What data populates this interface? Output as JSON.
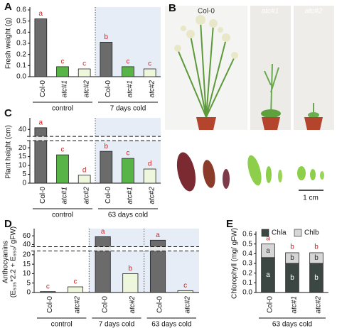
{
  "chart_data": [
    {
      "type": "bar",
      "panel": "A",
      "ylabel": "Fresh weight (g)",
      "categories": [
        "Col-0",
        "atc#1",
        "atc#2",
        "Col-0",
        "atc#1",
        "atc#2"
      ],
      "values": [
        0.52,
        0.09,
        0.07,
        0.31,
        0.09,
        0.07
      ],
      "colors": [
        "#6b6b6b",
        "#58b446",
        "#eef7dc",
        "#6b6b6b",
        "#58b446",
        "#eef7dc"
      ],
      "letters": [
        "a",
        "c",
        "c",
        "b",
        "c",
        "c"
      ],
      "groups": [
        "control",
        "7 days cold"
      ],
      "ylim": [
        0,
        0.6
      ],
      "yticks": [
        {
          "value": 0,
          "label": "0.0"
        },
        0.1,
        0.2,
        0.3,
        0.4,
        0.5,
        0.6
      ]
    },
    {
      "type": "bar",
      "panel": "C",
      "ylabel": "Plant height (cm)",
      "categories": [
        "Col-0",
        "atc#1",
        "atc#2",
        "Col-0",
        "atc#1",
        "atc#2"
      ],
      "values": [
        41,
        16,
        4.5,
        18,
        14,
        8
      ],
      "colors": [
        "#6b6b6b",
        "#58b446",
        "#eef7dc",
        "#6b6b6b",
        "#58b446",
        "#eef7dc"
      ],
      "letters": [
        "a",
        "c",
        "d",
        "b",
        "c",
        "d"
      ],
      "groups": [
        "control",
        "63 days cold"
      ],
      "ylim": [
        0,
        45
      ],
      "ybreak": [
        24,
        36
      ],
      "yticks": [
        0,
        5,
        10,
        15,
        20,
        40
      ]
    },
    {
      "type": "bar",
      "panel": "D",
      "ylabel": [
        "Anthocyanins",
        "(E₅₃₅*2.2 + E₆₅₀/ gFW)"
      ],
      "categories": [
        "Col-0",
        "atc#2",
        "Col-0",
        "atc#2",
        "Col-0",
        "atc#2"
      ],
      "values": [
        0.5,
        3,
        58,
        10,
        50,
        1
      ],
      "colors": [
        "#6b6b6b",
        "#eef7dc",
        "#6b6b6b",
        "#eef7dc",
        "#6b6b6b",
        "#eef7dc"
      ],
      "letters": [
        "c",
        "c",
        "a",
        "b",
        "a",
        "c"
      ],
      "groups": [
        "control",
        "7 days cold",
        "63 days cold"
      ],
      "ylim": [
        0,
        70
      ],
      "ybreak": [
        22,
        35
      ],
      "yticks": [
        0,
        5,
        10,
        15,
        20,
        40,
        60
      ]
    },
    {
      "type": "stacked_bar",
      "panel": "E",
      "ylabel": "Chlorophyll (mg/ gFW)",
      "categories": [
        "Col-0",
        "atc#1",
        "atc#2"
      ],
      "series": [
        {
          "name": "Chla",
          "color": "#3c4743",
          "values": [
            0.36,
            0.3,
            0.3
          ],
          "letters": [
            "a",
            "b",
            "b"
          ]
        },
        {
          "name": "Chlb",
          "color": "#d6d6d6",
          "values": [
            0.14,
            0.11,
            0.11
          ],
          "letters": [
            "a",
            "b",
            "b"
          ]
        }
      ],
      "letters": [
        "a",
        "b",
        "b"
      ],
      "groups": [
        "63 days cold"
      ],
      "ylim": [
        0,
        0.6
      ],
      "yticks": [
        {
          "value": 0,
          "label": "0.0"
        },
        0.1,
        0.2,
        0.3,
        0.4,
        0.5,
        0.6
      ]
    }
  ],
  "photo": {
    "panel": "B",
    "labels": [
      "Col-0",
      "atc#1",
      "atc#2"
    ],
    "scale": "1 cm"
  }
}
